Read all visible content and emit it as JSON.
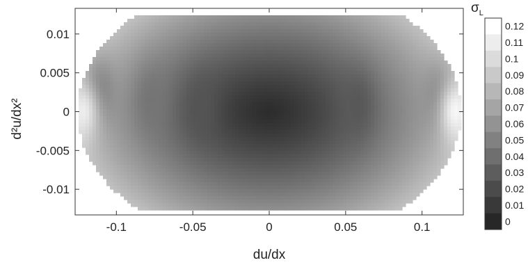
{
  "chart_data": {
    "type": "heatmap",
    "xlabel": "du/dx",
    "ylabel": "d²u/dx²",
    "xlim": [
      -0.127,
      0.127
    ],
    "ylim": [
      -0.0133,
      0.0133
    ],
    "x_ticks": [
      {
        "value": -0.1,
        "label": "-0.1"
      },
      {
        "value": -0.05,
        "label": "-0.05"
      },
      {
        "value": 0,
        "label": "0"
      },
      {
        "value": 0.05,
        "label": "0.05"
      },
      {
        "value": 0.1,
        "label": "0.1"
      }
    ],
    "y_ticks": [
      {
        "value": 0.01,
        "label": "0.01"
      },
      {
        "value": 0.005,
        "label": "0.005"
      },
      {
        "value": 0,
        "label": "0"
      },
      {
        "value": -0.005,
        "label": "-0.005"
      },
      {
        "value": -0.01,
        "label": "-0.01"
      }
    ],
    "colorbar": {
      "title": "σ",
      "title_subscript": "L",
      "range": [
        0,
        0.125
      ],
      "levels": [
        "0.12",
        "0.11",
        "0.1",
        "0.09",
        "0.08",
        "0.07",
        "0.06",
        "0.05",
        "0.04",
        "0.03",
        "0.02",
        "0.01",
        "0"
      ],
      "low_color": "#1e1e1e",
      "high_color": "#ffffff"
    },
    "domain_shape": "ellipse clipped at |y| = 0.0125",
    "value_field": {
      "description_units": "sigma_L",
      "center_value": 0.008,
      "edge_value": 0.09,
      "features": [
        {
          "x": -0.112,
          "y": 0.0025,
          "value": 0.05
        },
        {
          "x": 0.112,
          "y": 0.0018,
          "value": 0.055
        },
        {
          "x": -0.077,
          "y": 0.0015,
          "value": 0.048
        },
        {
          "x": 0.058,
          "y": 0.0008,
          "value": 0.032
        },
        {
          "x": -0.045,
          "y": 0.0005,
          "value": 0.03
        },
        {
          "x": -0.122,
          "y": 0.0,
          "value": 0.115
        },
        {
          "x": 0.122,
          "y": 0.0,
          "value": 0.12
        }
      ]
    }
  }
}
